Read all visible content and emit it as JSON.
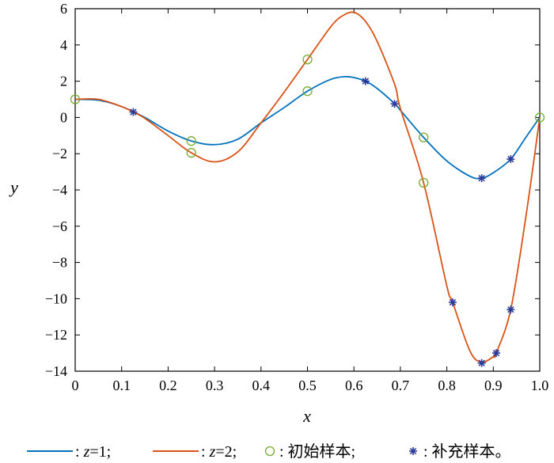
{
  "chart_data": {
    "type": "line",
    "title": "",
    "xlabel": "x",
    "ylabel": "y",
    "xlim": [
      0,
      1
    ],
    "ylim": [
      -14,
      6
    ],
    "x_ticks": [
      "0",
      "0.1",
      "0.2",
      "0.3",
      "0.4",
      "0.5",
      "0.6",
      "0.7",
      "0.8",
      "0.9",
      "1.0"
    ],
    "y_ticks": [
      "6",
      "4",
      "2",
      "0",
      "−2",
      "−4",
      "−6",
      "−8",
      "−10",
      "−12",
      "−14"
    ],
    "grid": false,
    "legend_position": "bottom",
    "series": [
      {
        "name": "z=1",
        "color": "#0072BD",
        "x": [
          0,
          0.05,
          0.1,
          0.15,
          0.2,
          0.25,
          0.3,
          0.35,
          0.4,
          0.45,
          0.5,
          0.55,
          0.58,
          0.6,
          0.625,
          0.65,
          0.688,
          0.7,
          0.75,
          0.8,
          0.85,
          0.875,
          0.9,
          0.9375,
          0.97,
          1.0
        ],
        "y": [
          1.0,
          0.95,
          0.6,
          0.0,
          -0.75,
          -1.3,
          -1.5,
          -1.2,
          -0.3,
          0.55,
          1.45,
          2.1,
          2.25,
          2.2,
          2.0,
          1.6,
          0.75,
          0.4,
          -1.1,
          -2.4,
          -3.25,
          -3.35,
          -3.05,
          -2.3,
          -1.1,
          0.0
        ]
      },
      {
        "name": "z=2",
        "color": "#D95319",
        "x": [
          0,
          0.05,
          0.1,
          0.125,
          0.15,
          0.2,
          0.25,
          0.3,
          0.35,
          0.4,
          0.45,
          0.5,
          0.55,
          0.575,
          0.6,
          0.625,
          0.65,
          0.688,
          0.7,
          0.75,
          0.8,
          0.8125,
          0.85,
          0.875,
          0.9,
          0.9063,
          0.9375,
          0.97,
          1.0
        ],
        "y": [
          1.0,
          1.0,
          0.6,
          0.3,
          -0.05,
          -1.0,
          -1.95,
          -2.45,
          -1.9,
          -0.3,
          1.4,
          3.2,
          5.0,
          5.6,
          5.8,
          5.3,
          4.2,
          1.8,
          0.5,
          -3.6,
          -9.3,
          -10.2,
          -12.9,
          -13.5,
          -13.2,
          -13.0,
          -10.6,
          -5.5,
          0.0
        ]
      }
    ],
    "initial_samples": {
      "color": "#77AC30",
      "points": [
        {
          "x": 0,
          "y": 1.0
        },
        {
          "x": 0.25,
          "y": -1.3
        },
        {
          "x": 0.25,
          "y": -1.95
        },
        {
          "x": 0.5,
          "y": 1.45
        },
        {
          "x": 0.5,
          "y": 3.2
        },
        {
          "x": 0.75,
          "y": -1.1
        },
        {
          "x": 0.75,
          "y": -3.6
        },
        {
          "x": 1.0,
          "y": 0.0
        }
      ]
    },
    "supplementary_samples": {
      "color": "#2B3A99",
      "points": [
        {
          "x": 0.125,
          "y": 0.3
        },
        {
          "x": 0.625,
          "y": 2.0
        },
        {
          "x": 0.6875,
          "y": 0.75
        },
        {
          "x": 0.875,
          "y": -3.35
        },
        {
          "x": 0.9375,
          "y": -2.3
        },
        {
          "x": 0.8125,
          "y": -10.2
        },
        {
          "x": 0.875,
          "y": -13.55
        },
        {
          "x": 0.9063,
          "y": -13.0
        },
        {
          "x": 0.9375,
          "y": -10.6
        }
      ]
    }
  },
  "legend": {
    "z1_prefix": ": ",
    "z1_var": "z",
    "z1_value": "=1;",
    "z2_prefix": ": ",
    "z2_var": "z",
    "z2_value": "=2;",
    "initial_label": ": 初始样本;",
    "supplementary_label": ": 补充样本。"
  }
}
